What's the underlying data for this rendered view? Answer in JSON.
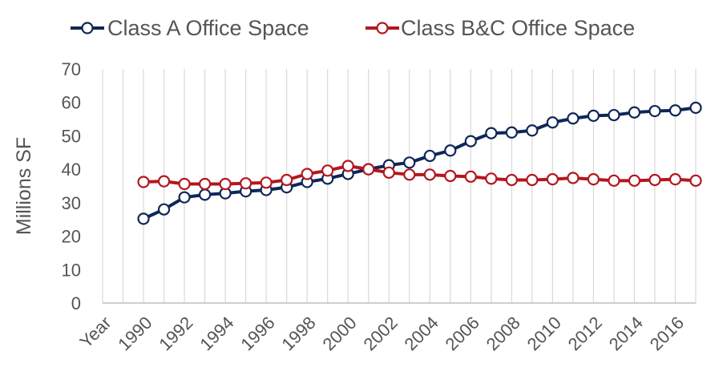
{
  "chart_data": {
    "type": "line",
    "title": "",
    "xlabel": "",
    "ylabel": "Millions SF",
    "ylim": [
      0,
      70
    ],
    "yticks": [
      0,
      10,
      20,
      30,
      40,
      50,
      60,
      70
    ],
    "categories": [
      "Year",
      "",
      "1990",
      "",
      "1992",
      "",
      "1994",
      "",
      "1996",
      "",
      "1998",
      "",
      "2000",
      "",
      "2002",
      "",
      "2004",
      "",
      "2006",
      "",
      "2008",
      "",
      "2010",
      "",
      "2012",
      "",
      "2014",
      "",
      "2016",
      ""
    ],
    "grid": true,
    "legend": "top",
    "series": [
      {
        "name": "Class A Office Space",
        "color": "#0f2757",
        "values": [
          null,
          null,
          25.2,
          28.0,
          31.6,
          32.4,
          32.8,
          33.4,
          33.8,
          34.6,
          36.2,
          37.2,
          38.6,
          40.0,
          41.2,
          42.0,
          44.0,
          45.6,
          48.4,
          50.8,
          51.0,
          51.6,
          54.0,
          55.2,
          56.0,
          56.2,
          57.0,
          57.4,
          57.6,
          58.4
        ]
      },
      {
        "name": "Class B&C Office Space",
        "color": "#b3171f",
        "values": [
          null,
          null,
          36.2,
          36.4,
          35.6,
          35.6,
          35.6,
          35.8,
          36.0,
          36.8,
          38.6,
          39.6,
          41.0,
          40.0,
          39.0,
          38.4,
          38.4,
          38.0,
          37.8,
          37.2,
          36.8,
          36.8,
          37.0,
          37.4,
          37.0,
          36.6,
          36.6,
          36.8,
          37.0,
          36.6
        ]
      }
    ]
  }
}
